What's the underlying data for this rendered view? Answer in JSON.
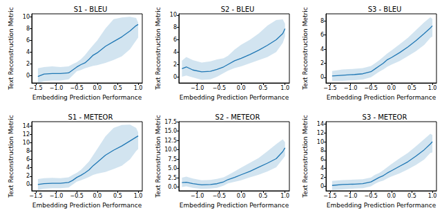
{
  "chart_data": [
    {
      "type": "line",
      "title": "S1 - BLEU",
      "x_label": "Embedding Prediction Performance",
      "y_label": "Text Reconstruction Metric",
      "color": "#1f77b4",
      "x": [
        -1.45,
        -1.3,
        -1.1,
        -0.9,
        -0.7,
        -0.6,
        -0.5,
        -0.4,
        -0.3,
        -0.2,
        -0.1,
        0.0,
        0.2,
        0.4,
        0.6,
        0.8,
        0.95,
        1.0
      ],
      "values": [
        -0.1,
        0.3,
        0.4,
        0.4,
        0.5,
        1.0,
        1.5,
        1.9,
        2.2,
        2.8,
        3.5,
        3.9,
        5.0,
        5.8,
        6.6,
        7.6,
        8.5,
        8.7
      ],
      "lower": [
        -1.2,
        -0.9,
        -0.8,
        -0.8,
        -0.6,
        0.1,
        0.8,
        1.0,
        1.3,
        1.5,
        1.7,
        1.8,
        2.2,
        2.7,
        3.3,
        4.5,
        6.0,
        6.5
      ],
      "upper": [
        1.3,
        1.5,
        1.6,
        1.5,
        1.6,
        2.0,
        2.3,
        2.8,
        3.5,
        4.4,
        5.2,
        6.0,
        8.0,
        9.6,
        9.9,
        10.0,
        9.8,
        9.0
      ],
      "xlim": [
        -1.6,
        1.1
      ],
      "ylim": [
        -1.2,
        10.5
      ],
      "xticks": [
        {
          "value": -1.5,
          "label": "−1.5"
        },
        {
          "value": -1.0,
          "label": "−1.0"
        },
        {
          "value": -0.5,
          "label": "−0.5"
        },
        {
          "value": 0.0,
          "label": "0.0"
        },
        0.5,
        {
          "value": 1.0,
          "label": "1.0"
        }
      ],
      "yticks": [
        0,
        2,
        4,
        6,
        8,
        10
      ],
      "grid": false
    },
    {
      "type": "line",
      "title": "S2 - BLEU",
      "x_label": "Embedding Prediction Performance",
      "y_label": "Text Reconstruction Metric",
      "color": "#1f77b4",
      "x": [
        -1.35,
        -1.25,
        -1.1,
        -0.9,
        -0.7,
        -0.55,
        -0.4,
        -0.3,
        -0.15,
        0.0,
        0.2,
        0.4,
        0.6,
        0.8,
        0.95,
        1.0
      ],
      "values": [
        1.3,
        1.6,
        1.1,
        0.8,
        0.9,
        1.2,
        1.6,
        2.0,
        2.6,
        3.0,
        3.6,
        4.3,
        5.1,
        6.0,
        7.0,
        7.8
      ],
      "lower": [
        0.0,
        0.2,
        -0.1,
        -0.5,
        -0.4,
        0.0,
        0.6,
        1.0,
        1.4,
        1.7,
        2.2,
        2.7,
        3.2,
        4.0,
        5.5,
        6.5
      ],
      "upper": [
        2.6,
        3.2,
        2.7,
        2.3,
        2.5,
        2.8,
        3.0,
        3.4,
        4.4,
        5.2,
        6.0,
        7.0,
        8.3,
        9.2,
        9.3,
        8.6
      ],
      "xlim": [
        -1.42,
        1.1
      ],
      "ylim": [
        -1.0,
        10.2
      ],
      "xticks": [
        {
          "value": -1.0,
          "label": "−1.0"
        },
        {
          "value": -0.5,
          "label": "−0.5"
        },
        {
          "value": 0.0,
          "label": "0.0"
        },
        0.5,
        {
          "value": 1.0,
          "label": "1.0"
        }
      ],
      "yticks": [
        0,
        2,
        4,
        6,
        8,
        10
      ],
      "grid": false
    },
    {
      "type": "line",
      "title": "S3 - BLEU",
      "x_label": "Embedding Prediction Performance",
      "y_label": "Text Reconstruction Metric",
      "color": "#1f77b4",
      "x": [
        -1.45,
        -1.2,
        -0.9,
        -0.7,
        -0.5,
        -0.4,
        -0.3,
        -0.2,
        -0.1,
        0.0,
        0.2,
        0.4,
        0.6,
        0.8,
        0.95,
        1.0
      ],
      "values": [
        0.2,
        0.3,
        0.4,
        0.5,
        0.8,
        1.2,
        1.6,
        2.0,
        2.5,
        2.8,
        3.5,
        4.3,
        5.2,
        6.2,
        7.0,
        7.3
      ],
      "lower": [
        -0.5,
        -0.5,
        -0.4,
        -0.3,
        0.0,
        0.4,
        0.8,
        1.1,
        1.5,
        1.8,
        2.3,
        3.0,
        3.7,
        4.6,
        5.6,
        5.8
      ],
      "upper": [
        0.9,
        1.1,
        1.2,
        1.3,
        1.6,
        2.0,
        2.4,
        2.9,
        3.4,
        3.8,
        4.7,
        5.6,
        6.7,
        7.8,
        8.5,
        8.3
      ],
      "xlim": [
        -1.6,
        1.1
      ],
      "ylim": [
        -0.8,
        9.0
      ],
      "xticks": [
        {
          "value": -1.5,
          "label": "−1.5"
        },
        {
          "value": -1.0,
          "label": "−1.0"
        },
        {
          "value": -0.5,
          "label": "−0.5"
        },
        {
          "value": 0.0,
          "label": "0.0"
        },
        0.5,
        {
          "value": 1.0,
          "label": "1.0"
        }
      ],
      "yticks": [
        0,
        2,
        4,
        6,
        8
      ],
      "grid": false
    },
    {
      "type": "line",
      "title": "S1 - METEOR",
      "x_label": "Embedding Prediction Performance",
      "y_label": "Text Reconstruction Metric",
      "color": "#1f77b4",
      "x": [
        -1.45,
        -1.3,
        -1.1,
        -0.9,
        -0.7,
        -0.6,
        -0.5,
        -0.4,
        -0.3,
        -0.2,
        -0.1,
        0.0,
        0.2,
        0.4,
        0.6,
        0.8,
        0.95,
        1.0
      ],
      "values": [
        0.0,
        0.2,
        0.3,
        0.3,
        0.5,
        1.0,
        1.7,
        2.2,
        2.8,
        3.5,
        4.5,
        5.3,
        7.0,
        8.2,
        9.2,
        10.4,
        11.3,
        11.6
      ],
      "lower": [
        -1.3,
        -1.0,
        -0.9,
        -0.9,
        -0.7,
        0.0,
        0.7,
        1.0,
        1.4,
        1.8,
        2.3,
        2.6,
        3.0,
        3.7,
        4.5,
        6.0,
        8.0,
        8.5
      ],
      "upper": [
        1.3,
        1.5,
        1.6,
        1.5,
        1.7,
        2.3,
        2.8,
        3.5,
        4.5,
        5.5,
        7.0,
        8.5,
        11.5,
        13.5,
        14.2,
        14.3,
        13.5,
        12.5
      ],
      "xlim": [
        -1.6,
        1.1
      ],
      "ylim": [
        -1.5,
        15.0
      ],
      "xticks": [
        {
          "value": -1.5,
          "label": "−1.5"
        },
        {
          "value": -1.0,
          "label": "−1.0"
        },
        {
          "value": -0.5,
          "label": "−0.5"
        },
        {
          "value": 0.0,
          "label": "0.0"
        },
        0.5,
        {
          "value": 1.0,
          "label": "1.0"
        }
      ],
      "yticks": [
        0,
        2,
        4,
        6,
        8,
        10,
        12,
        14
      ],
      "grid": false
    },
    {
      "type": "line",
      "title": "S2 - METEOR",
      "x_label": "Embedding Prediction Performance",
      "y_label": "Text Reconstruction Metric",
      "color": "#1f77b4",
      "x": [
        -1.35,
        -1.25,
        -1.1,
        -0.9,
        -0.7,
        -0.55,
        -0.4,
        -0.3,
        -0.15,
        0.0,
        0.2,
        0.4,
        0.6,
        0.8,
        0.95,
        1.0
      ],
      "values": [
        1.2,
        1.3,
        0.9,
        0.6,
        0.7,
        0.9,
        1.4,
        2.0,
        2.6,
        3.3,
        4.2,
        5.3,
        6.4,
        7.6,
        9.5,
        10.5
      ],
      "lower": [
        0.0,
        0.2,
        -0.2,
        -0.5,
        -0.4,
        -0.2,
        0.4,
        1.0,
        1.4,
        1.8,
        2.6,
        3.3,
        4.2,
        5.3,
        7.5,
        8.3
      ],
      "upper": [
        2.5,
        2.8,
        2.3,
        1.8,
        1.9,
        2.2,
        2.6,
        3.2,
        4.2,
        5.2,
        6.5,
        7.8,
        9.6,
        11.5,
        12.8,
        12.0
      ],
      "xlim": [
        -1.42,
        1.1
      ],
      "ylim": [
        -1.0,
        17.5
      ],
      "xticks": [
        {
          "value": -1.0,
          "label": "−1.0"
        },
        {
          "value": -0.5,
          "label": "−0.5"
        },
        {
          "value": 0.0,
          "label": "0.0"
        },
        0.5,
        {
          "value": 1.0,
          "label": "1.0"
        }
      ],
      "yticks": [
        {
          "value": 0.0,
          "label": "0.0"
        },
        2.5,
        {
          "value": 5.0,
          "label": "5.0"
        },
        7.5,
        {
          "value": 10.0,
          "label": "10.0"
        },
        12.5,
        {
          "value": 15.0,
          "label": "15.0"
        },
        17.5
      ],
      "grid": false
    },
    {
      "type": "line",
      "title": "S3 - METEOR",
      "x_label": "Embedding Prediction Performance",
      "y_label": "Text Reconstruction Metric",
      "color": "#1f77b4",
      "x": [
        -1.45,
        -1.2,
        -0.9,
        -0.7,
        -0.5,
        -0.4,
        -0.3,
        -0.2,
        -0.1,
        0.0,
        0.2,
        0.4,
        0.6,
        0.8,
        0.95,
        1.0
      ],
      "values": [
        0.2,
        0.4,
        0.5,
        0.6,
        1.0,
        1.5,
        2.0,
        2.4,
        3.0,
        3.5,
        4.5,
        5.5,
        6.8,
        8.2,
        9.5,
        10.0
      ],
      "lower": [
        -0.8,
        -0.7,
        -0.5,
        -0.4,
        0.0,
        0.6,
        1.0,
        1.3,
        1.8,
        2.2,
        2.9,
        3.8,
        4.8,
        6.0,
        7.5,
        7.6
      ],
      "upper": [
        1.2,
        1.4,
        1.5,
        1.6,
        2.0,
        2.6,
        3.0,
        3.6,
        4.3,
        5.0,
        6.3,
        7.5,
        9.0,
        10.6,
        11.8,
        11.5
      ],
      "xlim": [
        -1.6,
        1.1
      ],
      "ylim": [
        -1.0,
        14.5
      ],
      "xticks": [
        {
          "value": -1.5,
          "label": "−1.5"
        },
        {
          "value": -1.0,
          "label": "−1.0"
        },
        {
          "value": -0.5,
          "label": "−0.5"
        },
        {
          "value": 0.0,
          "label": "0.0"
        },
        0.5,
        {
          "value": 1.0,
          "label": "1.0"
        }
      ],
      "yticks": [
        0,
        2,
        4,
        6,
        8,
        10,
        12,
        14
      ],
      "grid": false
    }
  ]
}
